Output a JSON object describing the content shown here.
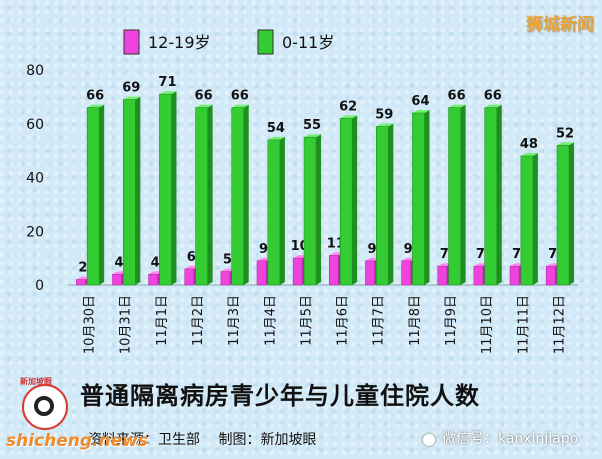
{
  "brand": "狮城新闻",
  "title": "普通隔离病房青少年与儿童住院人数",
  "source": {
    "data_source": "资料来源：卫生部",
    "made_by": "制图：新加坡眼"
  },
  "logo_text": "新加坡眼",
  "watermark_left": "shicheng.news",
  "wechat": {
    "label": "微信号：kanxinjiapo"
  },
  "colors": {
    "teen": "#ee44dd",
    "child": "#33cc33"
  },
  "chart_data": {
    "type": "bar",
    "categories": [
      "10月30日",
      "10月31日",
      "11月1日",
      "11月2日",
      "11月3日",
      "11月4日",
      "11月5日",
      "11月6日",
      "11月7日",
      "11月8日",
      "11月9日",
      "11月10日",
      "11月11日",
      "11月12日"
    ],
    "series": [
      {
        "name": "12-19岁",
        "values": [
          2,
          4,
          4,
          6,
          5,
          9,
          10,
          11,
          9,
          9,
          7,
          7,
          7,
          7
        ]
      },
      {
        "name": "0-11岁",
        "values": [
          66,
          69,
          71,
          66,
          66,
          54,
          55,
          62,
          59,
          64,
          66,
          66,
          48,
          52
        ]
      }
    ],
    "yticks": [
      0,
      20,
      40,
      60,
      80
    ],
    "ylim": [
      0,
      80
    ],
    "legend_position": "top"
  }
}
